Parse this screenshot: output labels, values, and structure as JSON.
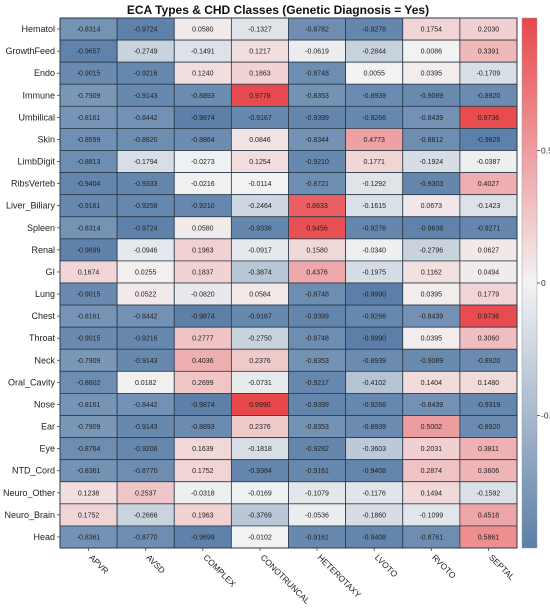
{
  "chart_data": {
    "type": "heatmap",
    "title": "ECA Types & CHD Classes (Genetic Diagnosis = Yes)",
    "rows": [
      "Hematol",
      "GrowthFeed",
      "Endo",
      "Immune",
      "Umbilical",
      "Skin",
      "LimbDigit",
      "RibsVerteb",
      "Liver_Biliary",
      "Spleen",
      "Renal",
      "GI",
      "Lung",
      "Chest",
      "Throat",
      "Neck",
      "Oral_Cavity",
      "Nose",
      "Ear",
      "Eye",
      "NTD_Cord",
      "Neuro_Other",
      "Neuro_Brain",
      "Head"
    ],
    "columns": [
      "APVR",
      "AVSD",
      "COMPLEX",
      "CONOTRUNCAL",
      "HETEROTAXY",
      "LVOTO",
      "RVOTO",
      "SEPTAL"
    ],
    "values": [
      [
        -0.8314,
        -0.9724,
        0.058,
        -0.1327,
        -0.8782,
        -0.9278,
        0.1754,
        0.203
      ],
      [
        -0.9657,
        -0.2749,
        -0.1491,
        0.1217,
        -0.0619,
        -0.2844,
        0.0086,
        0.3391
      ],
      [
        -0.9015,
        -0.9216,
        0.124,
        0.1863,
        -0.8748,
        0.0055,
        0.0395,
        -0.1709
      ],
      [
        -0.7909,
        -0.9143,
        -0.8893,
        0.9778,
        -0.8353,
        -0.8939,
        -0.9089,
        -0.892
      ],
      [
        -0.8161,
        -0.8442,
        -0.9874,
        -0.9167,
        -0.9399,
        -0.9266,
        -0.8439,
        0.9736
      ],
      [
        -0.8599,
        -0.882,
        -0.8864,
        0.0846,
        -0.8344,
        0.4773,
        -0.8812,
        -0.9825
      ],
      [
        -0.8813,
        -0.1794,
        -0.0273,
        0.1254,
        -0.921,
        0.1771,
        -0.1924,
        -0.0387
      ],
      [
        -0.9404,
        -0.9333,
        -0.0216,
        -0.0114,
        -0.8721,
        -0.1292,
        -0.9303,
        0.4027
      ],
      [
        -0.9161,
        -0.9258,
        -0.921,
        -0.2464,
        0.8633,
        -0.1615,
        0.0673,
        -0.1423
      ],
      [
        -0.8314,
        -0.9724,
        0.058,
        -0.9336,
        0.9456,
        -0.9278,
        -0.9638,
        -0.9271
      ],
      [
        -0.9699,
        -0.0946,
        0.1963,
        -0.0917,
        0.158,
        -0.034,
        -0.2796,
        0.0627
      ],
      [
        0.1674,
        0.0255,
        0.1837,
        -0.3874,
        0.4376,
        -0.1975,
        0.1162,
        0.0494
      ],
      [
        -0.9015,
        0.0522,
        -0.082,
        0.0584,
        -0.8748,
        -0.999,
        0.0395,
        0.1779
      ],
      [
        -0.8161,
        -0.8442,
        -0.9874,
        -0.9167,
        -0.9399,
        -0.9266,
        -0.8439,
        0.9736
      ],
      [
        -0.9015,
        -0.9216,
        0.2777,
        -0.275,
        -0.8748,
        -0.999,
        0.0395,
        0.306
      ],
      [
        -0.7909,
        -0.9143,
        0.4036,
        0.2376,
        -0.8353,
        -0.8939,
        -0.9089,
        -0.892
      ],
      [
        -0.8802,
        0.0182,
        0.2699,
        -0.0731,
        -0.9217,
        -0.4102,
        0.1404,
        0.148
      ],
      [
        -0.8161,
        -0.8442,
        -0.9874,
        0.999,
        -0.9399,
        -0.9266,
        -0.8439,
        -0.9319
      ],
      [
        -0.7909,
        -0.9143,
        -0.8893,
        0.2376,
        -0.8353,
        -0.8939,
        0.5002,
        -0.892
      ],
      [
        -0.8764,
        -0.9206,
        0.1639,
        -0.1818,
        -0.9282,
        -0.3603,
        0.2031,
        0.3811
      ],
      [
        -0.8361,
        -0.877,
        0.1752,
        -0.9384,
        -0.9161,
        -0.9408,
        0.2874,
        0.3606
      ],
      [
        0.1238,
        0.2537,
        -0.0318,
        -0.0169,
        -0.1079,
        -0.1176,
        0.1494,
        -0.1592
      ],
      [
        0.1752,
        -0.2666,
        0.1963,
        -0.3769,
        -0.0536,
        -0.186,
        -0.1099,
        0.4518
      ],
      [
        -0.8361,
        -0.877,
        -0.9699,
        -0.0102,
        -0.9161,
        -0.9408,
        -0.8761,
        0.5861
      ]
    ],
    "color_scale": {
      "min": -1,
      "max": 1,
      "low_color": "#5b7fa8",
      "mid_color": "#f3f3f3",
      "high_color": "#e8474b",
      "ticks": [
        0.5,
        0,
        -0.5
      ],
      "tick_labels": [
        "0.5",
        "0",
        "-0.5"
      ]
    },
    "legend_position": "right"
  }
}
